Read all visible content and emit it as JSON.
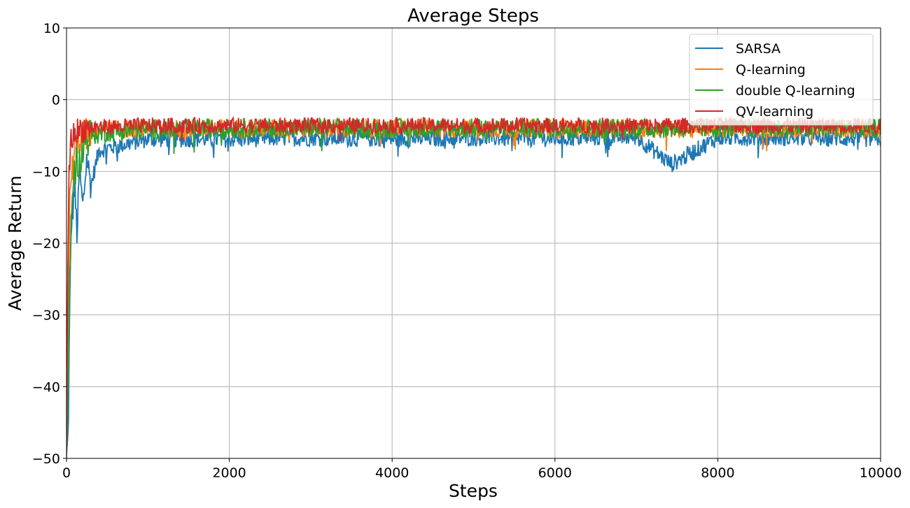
{
  "chart_data": {
    "type": "line",
    "title": "Average Steps",
    "xlabel": "Steps",
    "ylabel": "Average Return",
    "xlim": [
      0,
      10000
    ],
    "ylim": [
      -50,
      10
    ],
    "xticks": [
      0,
      2000,
      4000,
      6000,
      8000,
      10000
    ],
    "yticks": [
      -50,
      -40,
      -30,
      -20,
      -10,
      0,
      10
    ],
    "grid": true,
    "legend_position": "top-right",
    "series": [
      {
        "name": "SARSA",
        "color": "#1f77b4",
        "x": [
          0,
          20,
          40,
          60,
          80,
          100,
          130,
          160,
          200,
          250,
          300,
          400,
          600,
          1000,
          2000,
          3000,
          4000,
          5000,
          6000,
          7000,
          7430,
          8000,
          9000,
          10000
        ],
        "y": [
          -50,
          -47,
          -29,
          -17,
          -15,
          -12,
          -19,
          -10,
          -15,
          -8,
          -12,
          -7,
          -6.5,
          -5.5,
          -5.5,
          -5.3,
          -5.5,
          -5.3,
          -5.4,
          -5.2,
          -9,
          -5.3,
          -5.3,
          -5.5
        ],
        "noise": 1.2
      },
      {
        "name": "Q-learning",
        "color": "#ff7f0e",
        "x": [
          0,
          20,
          40,
          70,
          100,
          150,
          200,
          300,
          500,
          1000,
          2000,
          4000,
          6000,
          8000,
          10000
        ],
        "y": [
          -45,
          -30,
          -14,
          -10,
          -7,
          -5.5,
          -5,
          -4.5,
          -4.2,
          -4,
          -4,
          -4,
          -4,
          -4,
          -4
        ],
        "noise": 1.3
      },
      {
        "name": "double Q-learning",
        "color": "#2ca02c",
        "x": [
          0,
          20,
          40,
          60,
          80,
          100,
          130,
          160,
          200,
          250,
          300,
          500,
          1000,
          2000,
          4000,
          6000,
          8000,
          10000
        ],
        "y": [
          -50,
          -40,
          -25,
          -15,
          -12,
          -10,
          -8,
          -9,
          -7,
          -5.5,
          -5,
          -4.5,
          -4.2,
          -4,
          -4,
          -4,
          -4,
          -4
        ],
        "noise": 1.4
      },
      {
        "name": "QV-learning",
        "color": "#d62728",
        "x": [
          0,
          15,
          30,
          50,
          80,
          120,
          200,
          400,
          1000,
          2000,
          4000,
          6000,
          8000,
          10000
        ],
        "y": [
          -50,
          -25,
          -10,
          -6,
          -5,
          -4.5,
          -4,
          -3.8,
          -3.6,
          -3.6,
          -3.6,
          -3.6,
          -3.6,
          -3.6
        ],
        "noise": 1.1
      }
    ]
  }
}
